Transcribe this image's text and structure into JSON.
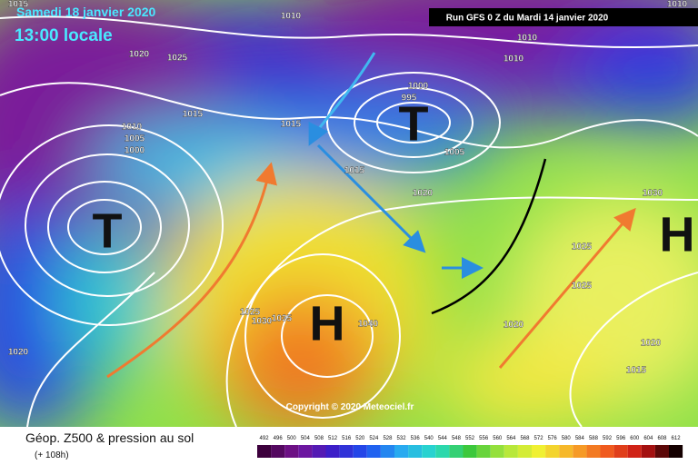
{
  "header": {
    "date": "Samedi 18 janvier 2020",
    "time": "13:00 locale",
    "run": "Run GFS 0 Z du Mardi 14 janvier 2020"
  },
  "map": {
    "pressure_labels": [
      "1015",
      "1010",
      "1010",
      "1020",
      "1025",
      "1010",
      "1010",
      "1000",
      "995",
      "1015",
      "1015",
      "1010",
      "1005",
      "1000",
      "1005",
      "1015",
      "1020",
      "1030",
      "1025",
      "1025",
      "1025",
      "1030",
      "1035",
      "1040",
      "1020",
      "1020",
      "1020",
      "1015"
    ],
    "systems": [
      "T",
      "T",
      "H",
      "H"
    ]
  },
  "copyright": "Copyright © 2020 Meteociel.fr",
  "legend": {
    "title": "Géop. Z500 & pression au sol",
    "lead": "(+ 108h)",
    "scale": [
      492,
      496,
      500,
      504,
      508,
      512,
      516,
      520,
      524,
      528,
      532,
      536,
      540,
      544,
      548,
      552,
      556,
      560,
      564,
      568,
      572,
      576,
      580,
      584,
      588,
      592,
      596,
      600,
      604,
      608,
      612
    ]
  }
}
